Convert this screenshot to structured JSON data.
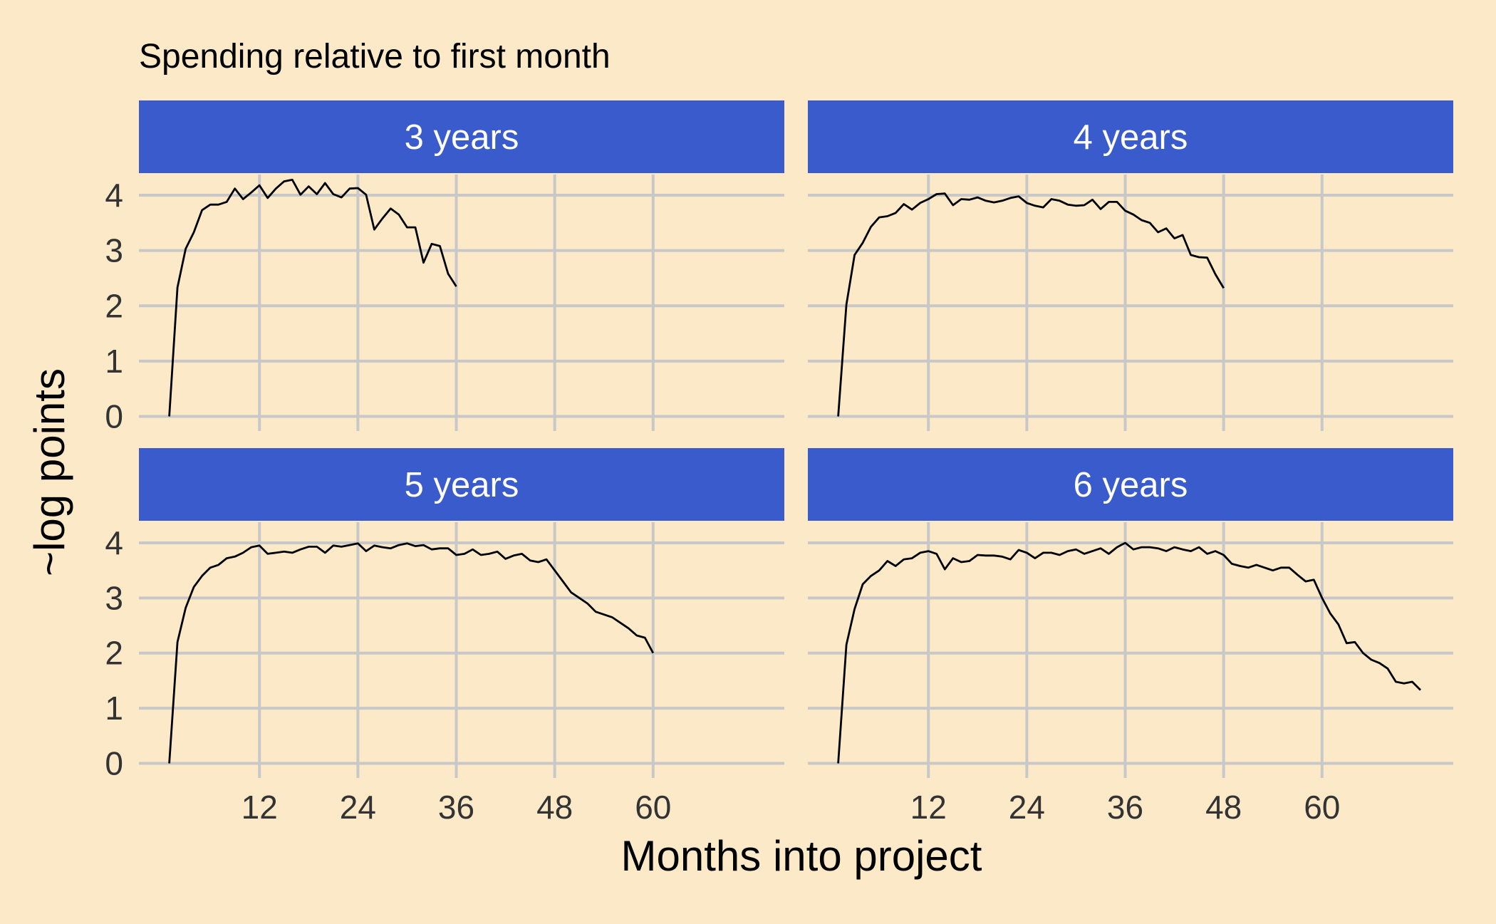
{
  "chart_data": {
    "type": "line",
    "title": "Spending relative to first month",
    "xlabel": "Months into project",
    "ylabel": "~log points",
    "xlim": [
      -2.7,
      76
    ],
    "ylim": [
      -0.2,
      4.4
    ],
    "x_ticks": [
      "12",
      "24",
      "36",
      "48",
      "60"
    ],
    "x_tick_values": [
      12,
      24,
      36,
      48,
      60
    ],
    "y_ticks": [
      "0",
      "1",
      "2",
      "3",
      "4"
    ],
    "y_tick_values": [
      0,
      1,
      2,
      3,
      4
    ],
    "grid": true,
    "colors": {
      "background": "#fce9c8",
      "strip": "#3a5bcc",
      "strip_text": "#ffffff",
      "grid": "#c8c8c8",
      "line": "#000000"
    },
    "facets": [
      {
        "label": "3 years",
        "series": [
          {
            "x": [
              1,
              2,
              3,
              4,
              5,
              6,
              7,
              8,
              9,
              10,
              11,
              12,
              13,
              14,
              15,
              16,
              17,
              18,
              19,
              20,
              21,
              22,
              23,
              24,
              25,
              26,
              27,
              28,
              29,
              30,
              31,
              32,
              33,
              34,
              35,
              36
            ],
            "y": [
              0.0,
              2.33,
              3.03,
              3.33,
              3.73,
              3.83,
              3.83,
              3.88,
              4.12,
              3.93,
              4.05,
              4.18,
              3.95,
              4.12,
              4.25,
              4.28,
              4.01,
              4.16,
              4.02,
              4.22,
              4.02,
              3.96,
              4.12,
              4.13,
              4.01,
              3.38,
              3.58,
              3.76,
              3.65,
              3.42,
              3.42,
              2.78,
              3.12,
              3.08,
              2.58,
              2.35
            ]
          }
        ]
      },
      {
        "label": "4 years",
        "series": [
          {
            "x": [
              1,
              2,
              3,
              4,
              5,
              6,
              7,
              8,
              9,
              10,
              11,
              12,
              13,
              14,
              15,
              16,
              17,
              18,
              19,
              20,
              21,
              22,
              23,
              24,
              25,
              26,
              27,
              28,
              29,
              30,
              31,
              32,
              33,
              34,
              35,
              36,
              37,
              38,
              39,
              40,
              41,
              42,
              43,
              44,
              45,
              46,
              47,
              48
            ],
            "y": [
              0.0,
              2.02,
              2.92,
              3.14,
              3.43,
              3.6,
              3.62,
              3.68,
              3.84,
              3.74,
              3.86,
              3.93,
              4.02,
              4.03,
              3.82,
              3.93,
              3.92,
              3.96,
              3.9,
              3.87,
              3.9,
              3.95,
              3.98,
              3.86,
              3.81,
              3.78,
              3.93,
              3.9,
              3.83,
              3.81,
              3.82,
              3.92,
              3.75,
              3.88,
              3.88,
              3.72,
              3.65,
              3.55,
              3.5,
              3.33,
              3.4,
              3.22,
              3.28,
              2.92,
              2.88,
              2.87,
              2.57,
              2.32
            ]
          }
        ]
      },
      {
        "label": "5 years",
        "series": [
          {
            "x": [
              1,
              2,
              3,
              4,
              5,
              6,
              7,
              8,
              9,
              10,
              11,
              12,
              13,
              14,
              15,
              16,
              17,
              18,
              19,
              20,
              21,
              22,
              23,
              24,
              25,
              26,
              27,
              28,
              29,
              30,
              31,
              32,
              33,
              34,
              35,
              36,
              37,
              38,
              39,
              40,
              41,
              42,
              43,
              44,
              45,
              46,
              47,
              48,
              49,
              50,
              51,
              52,
              53,
              54,
              55,
              56,
              57,
              58,
              59,
              60
            ],
            "y": [
              0.0,
              2.2,
              2.82,
              3.2,
              3.4,
              3.55,
              3.6,
              3.72,
              3.75,
              3.82,
              3.92,
              3.95,
              3.8,
              3.82,
              3.84,
              3.82,
              3.88,
              3.93,
              3.93,
              3.82,
              3.95,
              3.93,
              3.96,
              3.99,
              3.85,
              3.95,
              3.92,
              3.9,
              3.96,
              3.99,
              3.94,
              3.96,
              3.88,
              3.9,
              3.9,
              3.78,
              3.8,
              3.88,
              3.78,
              3.8,
              3.84,
              3.71,
              3.77,
              3.8,
              3.68,
              3.65,
              3.7,
              3.5,
              3.3,
              3.1,
              3.0,
              2.9,
              2.75,
              2.7,
              2.65,
              2.55,
              2.45,
              2.32,
              2.28,
              2.0
            ]
          }
        ]
      },
      {
        "label": "6 years",
        "series": [
          {
            "x": [
              1,
              2,
              3,
              4,
              5,
              6,
              7,
              8,
              9,
              10,
              11,
              12,
              13,
              14,
              15,
              16,
              17,
              18,
              19,
              20,
              21,
              22,
              23,
              24,
              25,
              26,
              27,
              28,
              29,
              30,
              31,
              32,
              33,
              34,
              35,
              36,
              37,
              38,
              39,
              40,
              41,
              42,
              43,
              44,
              45,
              46,
              47,
              48,
              49,
              50,
              51,
              52,
              53,
              54,
              55,
              56,
              57,
              58,
              59,
              60,
              61,
              62,
              63,
              64,
              65,
              66,
              67,
              68,
              69,
              70,
              71,
              72
            ],
            "y": [
              0.0,
              2.15,
              2.8,
              3.25,
              3.4,
              3.5,
              3.67,
              3.58,
              3.7,
              3.72,
              3.82,
              3.85,
              3.8,
              3.52,
              3.72,
              3.65,
              3.67,
              3.78,
              3.77,
              3.77,
              3.75,
              3.7,
              3.87,
              3.82,
              3.72,
              3.82,
              3.82,
              3.78,
              3.85,
              3.88,
              3.8,
              3.85,
              3.9,
              3.8,
              3.92,
              4.0,
              3.88,
              3.92,
              3.92,
              3.9,
              3.85,
              3.92,
              3.88,
              3.85,
              3.92,
              3.8,
              3.85,
              3.78,
              3.62,
              3.58,
              3.55,
              3.6,
              3.55,
              3.5,
              3.55,
              3.55,
              3.42,
              3.3,
              3.33,
              3.0,
              2.72,
              2.52,
              2.18,
              2.2,
              2.0,
              1.88,
              1.82,
              1.72,
              1.48,
              1.45,
              1.48,
              1.33
            ]
          }
        ]
      }
    ]
  }
}
